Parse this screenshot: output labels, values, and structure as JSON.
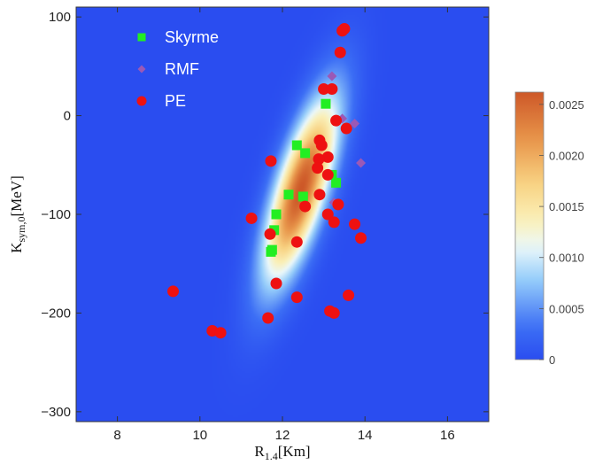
{
  "chart_data": {
    "type": "scatter",
    "background": "density-heatmap",
    "xlabel_main": "R",
    "xlabel_sub": "1.4",
    "xlabel_unit": "[Km]",
    "ylabel_main": "K",
    "ylabel_sub": "sym,0",
    "ylabel_unit": "[MeV]",
    "xlim": [
      7,
      17
    ],
    "ylim": [
      -310,
      110
    ],
    "x_ticks": [
      8,
      10,
      12,
      14,
      16
    ],
    "y_ticks": [
      100,
      0,
      -100,
      -200,
      -300
    ],
    "x_tick_labels": [
      "8",
      "10",
      "12",
      "14",
      "16"
    ],
    "y_tick_labels": [
      "100",
      "0",
      "−100",
      "−200",
      "−300"
    ],
    "legend_position": "top-left",
    "density": {
      "center_x": 12.45,
      "center_y": -75,
      "sigma_x": 0.62,
      "sigma_y": 65,
      "rho": 0.72,
      "peak": 0.00262
    },
    "colorbar": {
      "min": 0,
      "max": 0.00262,
      "ticks": [
        0,
        0.0005,
        0.001,
        0.0015,
        0.002,
        0.0025
      ],
      "tick_labels": [
        "0",
        "0.0005",
        "0.0010",
        "0.0015",
        "0.0020",
        "0.0025"
      ]
    },
    "series": [
      {
        "name": "Skyrme",
        "marker": "square",
        "color": "#22ee22",
        "points": [
          [
            13.05,
            12
          ],
          [
            12.35,
            -30
          ],
          [
            12.55,
            -38
          ],
          [
            13.2,
            -60
          ],
          [
            13.3,
            -68
          ],
          [
            12.15,
            -80
          ],
          [
            12.5,
            -82
          ],
          [
            11.85,
            -100
          ],
          [
            11.8,
            -116
          ],
          [
            11.75,
            -136
          ],
          [
            11.72,
            -138
          ]
        ]
      },
      {
        "name": "RMF",
        "marker": "diamond",
        "color": "#9b59b6",
        "points": [
          [
            13.2,
            40
          ],
          [
            13.45,
            -3
          ],
          [
            13.75,
            -8
          ],
          [
            13.9,
            -48
          ],
          [
            13.25,
            -88
          ]
        ]
      },
      {
        "name": "PE",
        "marker": "circle",
        "color": "#ee1111",
        "points": [
          [
            13.5,
            88
          ],
          [
            13.45,
            86
          ],
          [
            13.4,
            64
          ],
          [
            13.0,
            27
          ],
          [
            13.2,
            27
          ],
          [
            13.3,
            -5
          ],
          [
            13.55,
            -13
          ],
          [
            12.9,
            -25
          ],
          [
            12.95,
            -30
          ],
          [
            13.1,
            -42
          ],
          [
            12.88,
            -44
          ],
          [
            12.85,
            -53
          ],
          [
            13.1,
            -60
          ],
          [
            11.72,
            -46
          ],
          [
            12.9,
            -80
          ],
          [
            12.55,
            -92
          ],
          [
            13.1,
            -100
          ],
          [
            13.35,
            -90
          ],
          [
            11.25,
            -104
          ],
          [
            13.25,
            -108
          ],
          [
            13.75,
            -110
          ],
          [
            13.9,
            -124
          ],
          [
            11.7,
            -120
          ],
          [
            12.35,
            -128
          ],
          [
            11.85,
            -170
          ],
          [
            9.35,
            -178
          ],
          [
            12.35,
            -184
          ],
          [
            13.6,
            -182
          ],
          [
            11.65,
            -205
          ],
          [
            13.15,
            -198
          ],
          [
            13.25,
            -200
          ],
          [
            10.3,
            -218
          ],
          [
            10.5,
            -220
          ]
        ]
      }
    ]
  }
}
